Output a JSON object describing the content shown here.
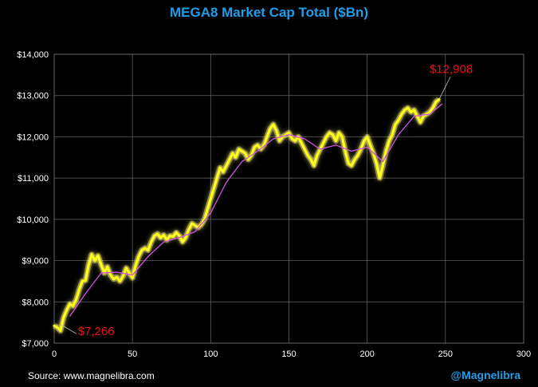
{
  "chart_data": {
    "type": "line",
    "title": "MEGA8 Market Cap Total ($Bn)",
    "xlabel": "",
    "ylabel": "",
    "xlim": [
      0,
      300
    ],
    "ylim": [
      7000,
      14000
    ],
    "x_ticks": [
      "0",
      "50",
      "100",
      "150",
      "200",
      "250",
      "300"
    ],
    "y_ticks": [
      "$7,000",
      "$8,000",
      "$9,000",
      "$10,000",
      "$11,000",
      "$12,000",
      "$13,000",
      "$14,000"
    ],
    "grid": true,
    "colors": {
      "main_line": "#ffff1a",
      "glow": "#fff27a",
      "moving_average": "#d24fe6",
      "annotation": "#e8111d",
      "title": "#1e9ee8"
    },
    "series": [
      {
        "role": "market-cap",
        "values": [
          [
            0,
            7420
          ],
          [
            2,
            7380
          ],
          [
            4,
            7300
          ],
          [
            6,
            7620
          ],
          [
            8,
            7800
          ],
          [
            10,
            7950
          ],
          [
            12,
            7900
          ],
          [
            14,
            8050
          ],
          [
            16,
            8300
          ],
          [
            18,
            8500
          ],
          [
            20,
            8520
          ],
          [
            22,
            8900
          ],
          [
            24,
            9150
          ],
          [
            26,
            9000
          ],
          [
            28,
            9120
          ],
          [
            30,
            8900
          ],
          [
            32,
            8700
          ],
          [
            34,
            8850
          ],
          [
            36,
            8650
          ],
          [
            38,
            8550
          ],
          [
            40,
            8600
          ],
          [
            42,
            8500
          ],
          [
            44,
            8620
          ],
          [
            46,
            8820
          ],
          [
            48,
            8700
          ],
          [
            50,
            8580
          ],
          [
            52,
            8880
          ],
          [
            54,
            9100
          ],
          [
            56,
            9250
          ],
          [
            58,
            9300
          ],
          [
            60,
            9250
          ],
          [
            62,
            9450
          ],
          [
            64,
            9600
          ],
          [
            66,
            9650
          ],
          [
            68,
            9550
          ],
          [
            70,
            9620
          ],
          [
            72,
            9500
          ],
          [
            74,
            9600
          ],
          [
            76,
            9580
          ],
          [
            78,
            9680
          ],
          [
            80,
            9600
          ],
          [
            82,
            9450
          ],
          [
            84,
            9550
          ],
          [
            86,
            9750
          ],
          [
            88,
            9900
          ],
          [
            90,
            9850
          ],
          [
            92,
            9800
          ],
          [
            94,
            9870
          ],
          [
            96,
            10000
          ],
          [
            98,
            10250
          ],
          [
            100,
            10500
          ],
          [
            102,
            10750
          ],
          [
            104,
            11000
          ],
          [
            106,
            11250
          ],
          [
            108,
            11150
          ],
          [
            110,
            11300
          ],
          [
            112,
            11450
          ],
          [
            114,
            11600
          ],
          [
            116,
            11500
          ],
          [
            118,
            11700
          ],
          [
            120,
            11650
          ],
          [
            122,
            11600
          ],
          [
            124,
            11450
          ],
          [
            126,
            11550
          ],
          [
            128,
            11750
          ],
          [
            130,
            11800
          ],
          [
            132,
            11700
          ],
          [
            134,
            11800
          ],
          [
            136,
            12000
          ],
          [
            138,
            12200
          ],
          [
            140,
            12300
          ],
          [
            142,
            12150
          ],
          [
            144,
            11900
          ],
          [
            146,
            12000
          ],
          [
            148,
            12050
          ],
          [
            150,
            12100
          ],
          [
            152,
            11950
          ],
          [
            154,
            11900
          ],
          [
            156,
            12000
          ],
          [
            158,
            11850
          ],
          [
            160,
            11700
          ],
          [
            162,
            11550
          ],
          [
            164,
            11450
          ],
          [
            166,
            11300
          ],
          [
            168,
            11550
          ],
          [
            170,
            11700
          ],
          [
            172,
            11850
          ],
          [
            174,
            12000
          ],
          [
            176,
            12100
          ],
          [
            178,
            12050
          ],
          [
            180,
            11900
          ],
          [
            182,
            12100
          ],
          [
            184,
            12000
          ],
          [
            186,
            11650
          ],
          [
            188,
            11350
          ],
          [
            190,
            11300
          ],
          [
            192,
            11450
          ],
          [
            194,
            11550
          ],
          [
            196,
            11700
          ],
          [
            198,
            11900
          ],
          [
            200,
            12000
          ],
          [
            202,
            11800
          ],
          [
            204,
            11600
          ],
          [
            206,
            11350
          ],
          [
            208,
            11000
          ],
          [
            210,
            11300
          ],
          [
            212,
            11650
          ],
          [
            214,
            11900
          ],
          [
            216,
            12050
          ],
          [
            218,
            12300
          ],
          [
            220,
            12400
          ],
          [
            222,
            12550
          ],
          [
            224,
            12650
          ],
          [
            226,
            12700
          ],
          [
            228,
            12600
          ],
          [
            230,
            12650
          ],
          [
            232,
            12500
          ],
          [
            234,
            12350
          ],
          [
            236,
            12500
          ],
          [
            238,
            12550
          ],
          [
            240,
            12600
          ],
          [
            242,
            12700
          ],
          [
            244,
            12850
          ],
          [
            246,
            12908
          ]
        ]
      },
      {
        "role": "moving-average",
        "values": [
          [
            10,
            7650
          ],
          [
            20,
            8200
          ],
          [
            30,
            8700
          ],
          [
            40,
            8720
          ],
          [
            50,
            8650
          ],
          [
            60,
            9100
          ],
          [
            70,
            9450
          ],
          [
            80,
            9560
          ],
          [
            90,
            9700
          ],
          [
            100,
            10150
          ],
          [
            110,
            10900
          ],
          [
            120,
            11400
          ],
          [
            130,
            11650
          ],
          [
            140,
            11950
          ],
          [
            150,
            12050
          ],
          [
            160,
            11950
          ],
          [
            170,
            11700
          ],
          [
            180,
            11800
          ],
          [
            190,
            11650
          ],
          [
            200,
            11750
          ],
          [
            210,
            11400
          ],
          [
            220,
            12050
          ],
          [
            230,
            12500
          ],
          [
            240,
            12550
          ],
          [
            248,
            12800
          ]
        ]
      }
    ],
    "annotations": [
      {
        "text": "$7,266",
        "point": [
          8,
          7266
        ]
      },
      {
        "text": "$12,908",
        "point": [
          246,
          12908
        ]
      }
    ]
  },
  "footer": {
    "source": "Source: www.magnelibra.com",
    "handle": "@Magnelibra"
  }
}
